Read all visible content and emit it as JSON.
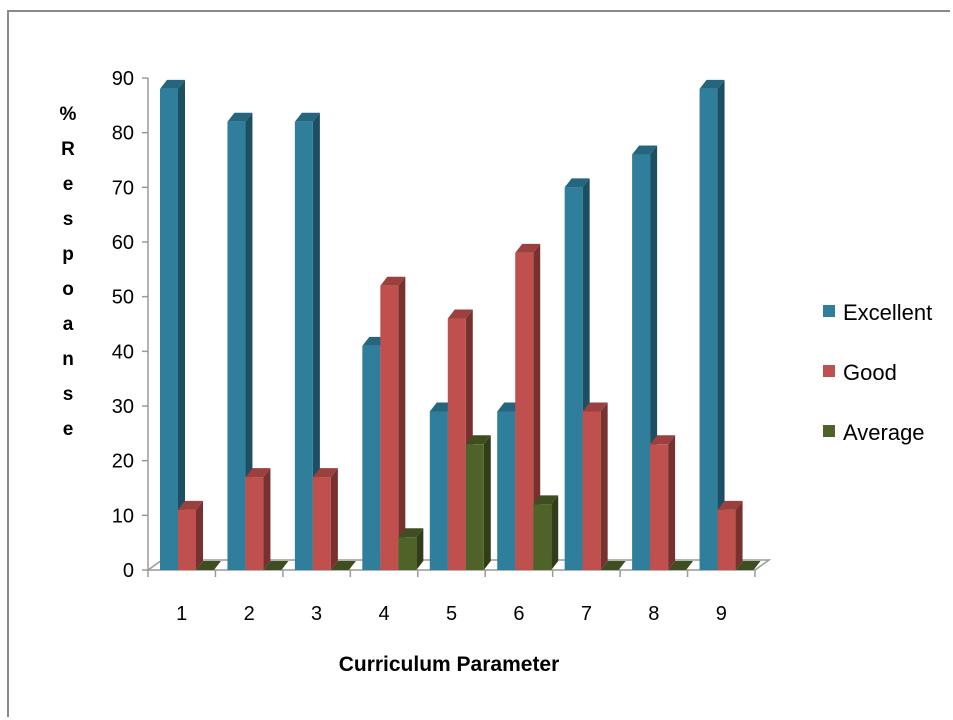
{
  "chart_data": {
    "type": "bar",
    "categories": [
      "1",
      "2",
      "3",
      "4",
      "5",
      "6",
      "7",
      "8",
      "9"
    ],
    "series": [
      {
        "name": "Excellent",
        "color": "#2e7e9c",
        "values": [
          88,
          82,
          82,
          41,
          29,
          29,
          70,
          76,
          88
        ]
      },
      {
        "name": "Good",
        "color": "#c0504d",
        "values": [
          11,
          17,
          17,
          52,
          46,
          58,
          29,
          23,
          11
        ]
      },
      {
        "name": "Average",
        "color": "#4f6228",
        "values": [
          0,
          0,
          0,
          6,
          23,
          12,
          0,
          0,
          0
        ]
      }
    ],
    "title": "",
    "xlabel": "Curriculum  Parameter",
    "ylabel": "% R e s p o a n s e",
    "ylim": [
      0,
      90
    ],
    "yticks": [
      0,
      10,
      20,
      30,
      40,
      50,
      60,
      70,
      80,
      90
    ],
    "legend_position": "right",
    "grid": false,
    "style": "3d-clustered-column"
  }
}
